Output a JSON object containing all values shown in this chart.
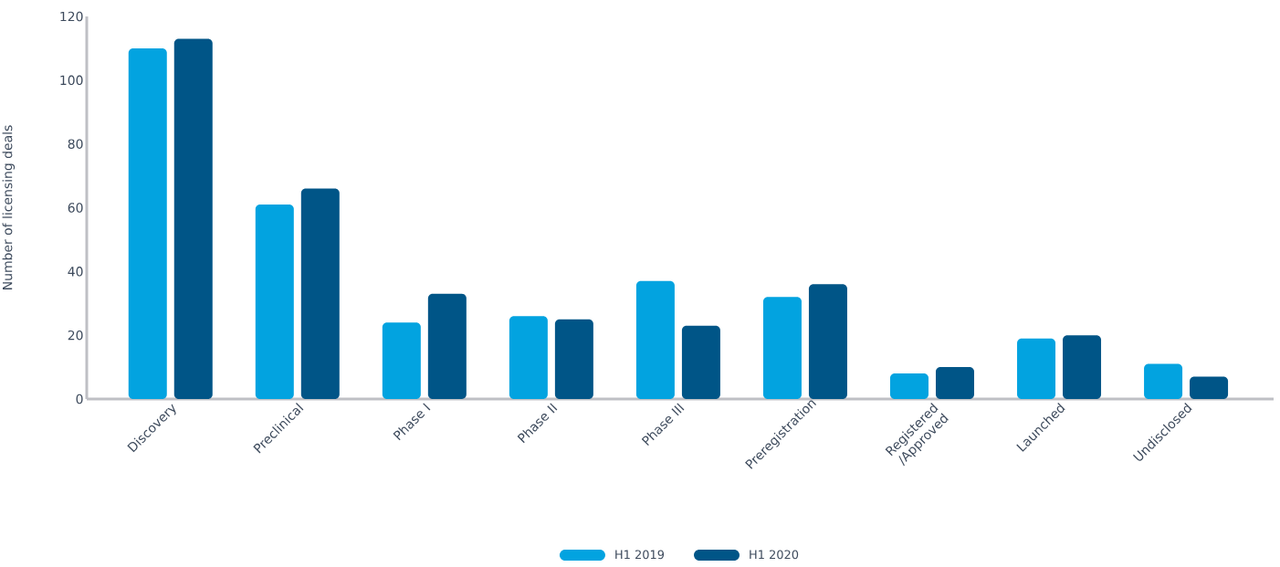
{
  "chart_data": {
    "type": "bar",
    "ylabel": "Number of licensing deals",
    "categories": [
      "Discovery",
      "Preclinical",
      "Phase I",
      "Phase II",
      "Phase III",
      "Preregistration",
      "Registered /Approved",
      "Launched",
      "Undisclosed"
    ],
    "series": [
      {
        "name": "H1 2019",
        "color": "#02a3e0",
        "values": [
          110,
          61,
          24,
          26,
          37,
          32,
          8,
          19,
          11
        ]
      },
      {
        "name": "H1 2020",
        "color": "#005587",
        "values": [
          113,
          66,
          33,
          25,
          23,
          36,
          10,
          20,
          7
        ]
      }
    ],
    "ylim": [
      0,
      120
    ],
    "yticks": [
      0,
      20,
      40,
      60,
      80,
      100,
      120
    ],
    "legend": "bottom",
    "grid": false
  }
}
